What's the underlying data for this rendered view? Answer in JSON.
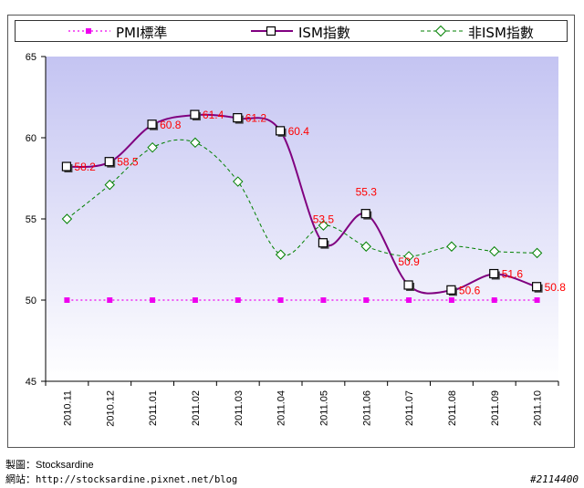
{
  "chart_data": {
    "type": "line",
    "title": "",
    "xlabel": "",
    "ylabel": "",
    "ylim": [
      45,
      65
    ],
    "yticks": [
      45,
      50,
      55,
      60,
      65
    ],
    "categories": [
      "2010.11",
      "2010.12",
      "2011.01",
      "2011.02",
      "2011.03",
      "2011.04",
      "2011.05",
      "2011.06",
      "2011.07",
      "2011.08",
      "2011.09",
      "2011.10"
    ],
    "legend_position": "top",
    "series": [
      {
        "name": "PMI標準",
        "values": [
          50,
          50,
          50,
          50,
          50,
          50,
          50,
          50,
          50,
          50,
          50,
          50
        ],
        "color": "#ee00ee",
        "style": "dotted",
        "marker": "square-filled"
      },
      {
        "name": "ISM指數",
        "values": [
          58.2,
          58.5,
          60.8,
          61.4,
          61.2,
          60.4,
          53.5,
          55.3,
          50.9,
          50.6,
          51.6,
          50.8
        ],
        "labels": [
          "58.2",
          "58.5",
          "60.8",
          "61.4",
          "61.2",
          "60.4",
          "53.5",
          "55.3",
          "50.9",
          "50.6",
          "51.6",
          "50.8"
        ],
        "color": "#800080",
        "style": "solid",
        "marker": "square-open"
      },
      {
        "name": "非ISM指數",
        "values": [
          55.0,
          57.1,
          59.4,
          59.7,
          57.3,
          52.8,
          54.6,
          53.3,
          52.7,
          53.3,
          53.0,
          52.9
        ],
        "color": "#008000",
        "style": "dashed",
        "marker": "diamond-open"
      }
    ],
    "label_color": "#ff0000",
    "plot_background_top": "#c4c4f2",
    "plot_background_bottom": "#ffffff"
  },
  "credits": {
    "maker_label": "製圖：",
    "maker_value": "Stocksardine",
    "site_label": "網站：",
    "site_value": "http://stocksardine.pixnet.net/blog"
  },
  "image_id": "#2114400"
}
